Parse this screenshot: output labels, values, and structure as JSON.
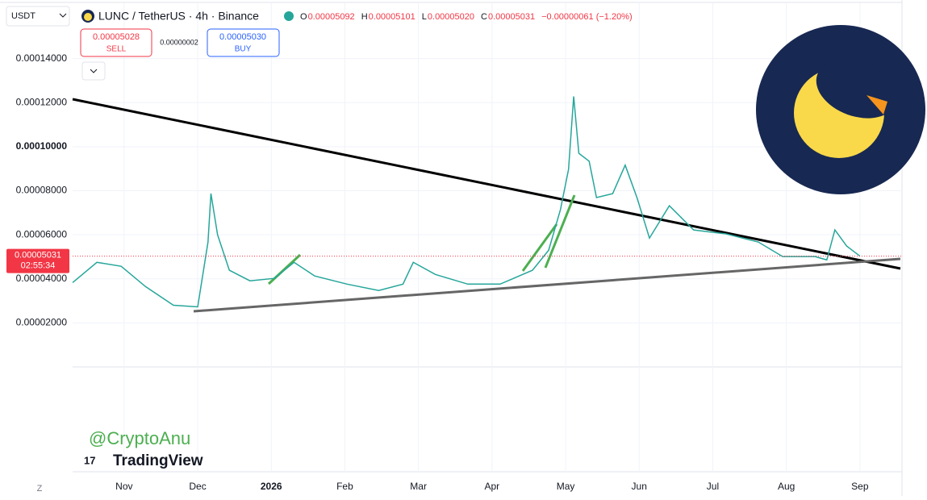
{
  "header": {
    "quote": "USDT",
    "symbol": "LUNC / TetherUS · 4h · Binance",
    "ohlc": [
      {
        "key": "O",
        "value": "0.00005092"
      },
      {
        "key": "H",
        "value": "0.00005101"
      },
      {
        "key": "L",
        "value": "0.00005020"
      },
      {
        "key": "C",
        "value": "0.00005031"
      }
    ],
    "change": "−0.00000061 (−1.20%)",
    "sell_price": "0.00005028",
    "sell": "SELL",
    "spread": "0.00000002",
    "buy_price": "0.00005030",
    "buy": "BUY",
    "price_tag": "0.00005031",
    "countdown": "02:55:34",
    "watermark": "@CryptoAnu",
    "brand": "TradingView",
    "timezone_button": "Z"
  },
  "chart_data": {
    "type": "line",
    "x": [
      -0.7,
      -0.37,
      -0.04,
      0.29,
      0.67,
      1.0,
      1.14,
      1.18,
      1.27,
      1.43,
      1.71,
      2.04,
      2.31,
      2.59,
      3.03,
      3.46,
      3.79,
      3.93,
      4.23,
      4.67,
      5.11,
      5.55,
      5.77,
      5.93,
      6.04,
      6.11,
      6.18,
      6.32,
      6.42,
      6.64,
      6.81,
      6.97,
      7.14,
      7.41,
      7.74,
      8.18,
      8.62,
      8.95,
      9.39,
      9.55,
      9.66,
      9.82,
      10.0
    ],
    "series": [
      {
        "name": "LUNC / TetherUS",
        "color": "#26a69a",
        "values": [
          3.83e-05,
          4.75e-05,
          4.57e-05,
          3.65e-05,
          2.8e-05,
          2.73e-05,
          5.67e-05,
          7.87e-05,
          6e-05,
          4.39e-05,
          3.91e-05,
          4.02e-05,
          4.75e-05,
          4.13e-05,
          3.76e-05,
          3.47e-05,
          3.76e-05,
          4.75e-05,
          4.2e-05,
          3.76e-05,
          3.76e-05,
          4.39e-05,
          5.3e-05,
          7.14e-05,
          8.97e-05,
          0.0001228,
          9.7e-05,
          9.34e-05,
          7.69e-05,
          7.87e-05,
          9.16e-05,
          7.69e-05,
          5.85e-05,
          7.32e-05,
          6.22e-05,
          6.04e-05,
          5.67e-05,
          5.01e-05,
          5.01e-05,
          4.86e-05,
          6.22e-05,
          5.49e-05,
          5.031e-05
        ]
      }
    ],
    "xlim": [
      -0.7,
      10.55
    ],
    "xticks": [
      {
        "value": 0,
        "label": "Nov"
      },
      {
        "value": 1,
        "label": "Dec"
      },
      {
        "value": 2,
        "label": "2026"
      },
      {
        "value": 3,
        "label": "Feb"
      },
      {
        "value": 4,
        "label": "Mar"
      },
      {
        "value": 5,
        "label": "Apr"
      },
      {
        "value": 6,
        "label": "May"
      },
      {
        "value": 7,
        "label": "Jun"
      },
      {
        "value": 8,
        "label": "Jul"
      },
      {
        "value": 9,
        "label": "Aug"
      },
      {
        "value": 10,
        "label": "Sep"
      }
    ],
    "ylim": [
      0,
      0.00016
    ],
    "yticks": [
      {
        "value": 2e-05,
        "label": "0.00002000"
      },
      {
        "value": 4e-05,
        "label": "0.00004000"
      },
      {
        "value": 6e-05,
        "label": "0.00006000"
      },
      {
        "value": 8e-05,
        "label": "0.00008000"
      },
      {
        "value": 0.0001,
        "label": "0.00010000"
      },
      {
        "value": 0.00012,
        "label": "0.00012000"
      },
      {
        "value": 0.00014,
        "label": "0.00014000"
      }
    ],
    "grid": true
  }
}
